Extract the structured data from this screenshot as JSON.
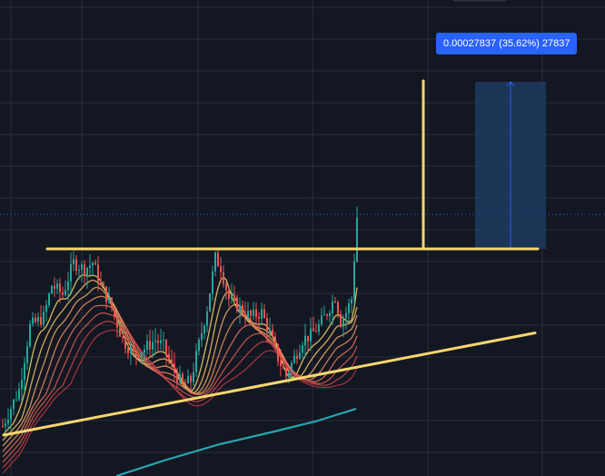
{
  "colors": {
    "background": "#131722",
    "grid": "#2a2e39",
    "up": "#26a69a",
    "down": "#ef5350",
    "trendline": "#f5d76e",
    "measure_fill": "#1e3a5f",
    "measure_line": "#2962ff",
    "ma_long": "#26a6b0",
    "price_line": "#2962ff"
  },
  "measure": {
    "label": "0.00027837 (35.62%) 27837"
  },
  "chart_data": {
    "type": "candlestick",
    "title": "",
    "xlabel": "",
    "ylabel": "",
    "grid": true,
    "ylim": [
      0,
      1000
    ],
    "xlim": [
      0,
      130
    ],
    "overlays": [
      {
        "kind": "trendline",
        "label": "resistance",
        "points": [
          [
            16,
            500
          ],
          [
            196,
            500
          ]
        ]
      },
      {
        "kind": "trendline",
        "label": "support",
        "points": [
          [
            0,
            90
          ],
          [
            195,
            315
          ]
        ]
      },
      {
        "kind": "vertical-line",
        "points": [
          [
            154,
            500
          ],
          [
            154,
            870
          ]
        ]
      },
      {
        "kind": "measure-range",
        "x_range": [
          173,
          199
        ],
        "y_range": [
          500,
          868
        ]
      }
    ],
    "ribbon": {
      "name": "ma-ribbon",
      "count": 8,
      "colors": [
        "#f5d76e",
        "#f2c46c",
        "#eeaa68",
        "#e88f62",
        "#e0735c",
        "#d55a53",
        "#c8454b",
        "#b53744"
      ]
    },
    "ma_long": [
      [
        42,
        0
      ],
      [
        60,
        35
      ],
      [
        80,
        70
      ],
      [
        100,
        98
      ],
      [
        115,
        120
      ],
      [
        130,
        148
      ]
    ]
  }
}
